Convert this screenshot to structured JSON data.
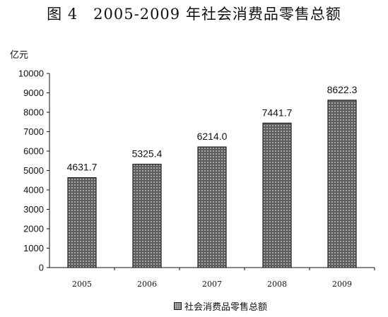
{
  "title": "图 4　2005-2009 年社会消费品零售总额",
  "unit_label": "亿元",
  "colors": {
    "bar_fill": "#5f5f5f",
    "bar_dots": "#d8d8d8",
    "bar_border": "#222222"
  },
  "chart_data": {
    "type": "bar",
    "title": "图 4　2005-2009 年社会消费品零售总额",
    "xlabel": "",
    "ylabel": "亿元",
    "categories": [
      "2005",
      "2006",
      "2007",
      "2008",
      "2009"
    ],
    "series": [
      {
        "name": "社会消费品零售总额",
        "values": [
          4631.7,
          5325.4,
          6214.0,
          7441.7,
          8622.3
        ],
        "labels": [
          "4631.7",
          "5325.4",
          "6214.0",
          "7441.7",
          "8622.3"
        ]
      }
    ],
    "ylim": [
      0,
      10000
    ],
    "yticks": [
      0,
      1000,
      2000,
      3000,
      4000,
      5000,
      6000,
      7000,
      8000,
      9000,
      10000
    ],
    "grid": false,
    "legend": "bottom"
  }
}
